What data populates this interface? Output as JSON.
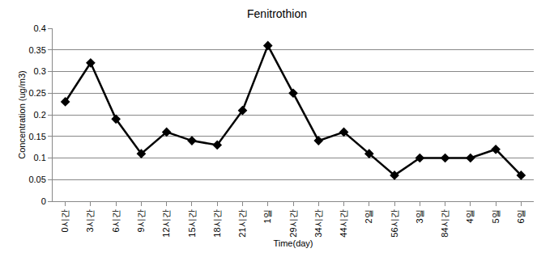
{
  "chart_data": {
    "type": "line",
    "title": "Fenitrothion",
    "x_label": "Time(day)",
    "y_label": "Concentration (ug/m3)",
    "categories": [
      "0시간",
      "3시간",
      "6시간",
      "9시간",
      "12시간",
      "15시간",
      "18시간",
      "21시간",
      "1일",
      "29시간",
      "34시간",
      "44시간",
      "2일",
      "56시간",
      "3일",
      "84시간",
      "4일",
      "5일",
      "6일"
    ],
    "values": [
      0.23,
      0.32,
      0.19,
      0.11,
      0.16,
      0.14,
      0.13,
      0.21,
      0.36,
      0.25,
      0.14,
      0.16,
      0.11,
      0.06,
      0.1,
      0.1,
      0.1,
      0.12,
      0.06
    ],
    "color": "#000000",
    "marker": "diamond",
    "line_style": "solid",
    "ylim": [
      0,
      0.4
    ],
    "yticks": [
      0,
      0.05,
      0.1,
      0.15,
      0.2,
      0.25,
      0.3,
      0.35,
      0.4
    ],
    "grid": true
  }
}
